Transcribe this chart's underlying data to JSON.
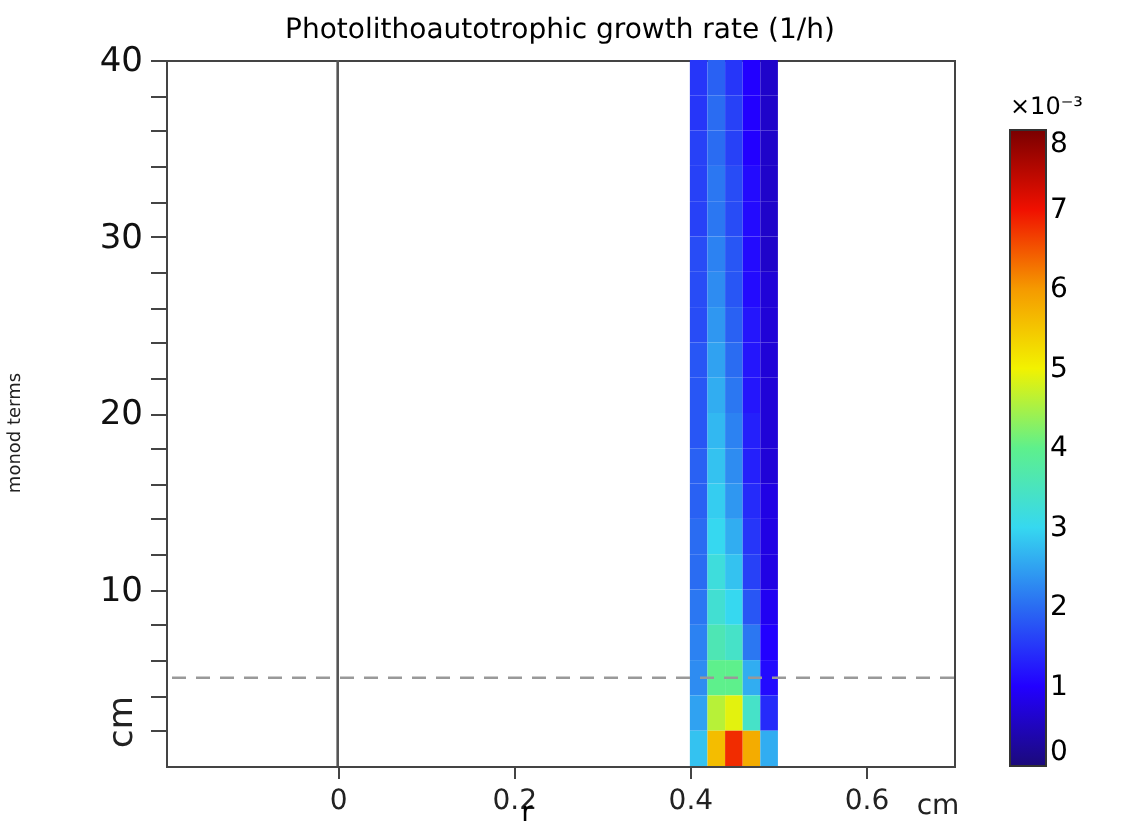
{
  "chart_data": {
    "type": "heatmap",
    "title": "Photolithoautotrophic growth rate (1/h)",
    "xlabel": "r",
    "clabel": "×10⁻³",
    "x": [
      0.41,
      0.43,
      0.45,
      0.47,
      0.49
    ],
    "cells": [
      [
        1.5,
        1.9,
        1.5,
        1.0,
        0.6
      ],
      [
        1.5,
        2.0,
        1.6,
        1.0,
        0.6
      ],
      [
        1.6,
        2.0,
        1.6,
        1.0,
        0.6
      ],
      [
        1.6,
        2.1,
        1.7,
        1.1,
        0.6
      ],
      [
        1.6,
        2.1,
        1.7,
        1.1,
        0.6
      ],
      [
        1.7,
        2.2,
        1.8,
        1.1,
        0.6
      ],
      [
        1.7,
        2.3,
        1.8,
        1.1,
        0.7
      ],
      [
        1.7,
        2.4,
        1.9,
        1.2,
        0.7
      ],
      [
        1.8,
        2.5,
        2.0,
        1.2,
        0.7
      ],
      [
        1.8,
        2.6,
        2.1,
        1.2,
        0.7
      ],
      [
        1.8,
        2.7,
        2.2,
        1.3,
        0.7
      ],
      [
        1.9,
        2.8,
        2.3,
        1.3,
        0.7
      ],
      [
        1.9,
        2.9,
        2.4,
        1.4,
        0.8
      ],
      [
        2.0,
        3.0,
        2.6,
        1.5,
        0.8
      ],
      [
        2.0,
        3.2,
        2.8,
        1.6,
        0.8
      ],
      [
        2.1,
        3.3,
        3.0,
        1.8,
        0.9
      ],
      [
        2.2,
        3.6,
        3.4,
        2.1,
        1.0
      ],
      [
        2.3,
        4.0,
        4.0,
        2.6,
        1.1
      ],
      [
        2.5,
        4.6,
        4.9,
        3.4,
        1.4
      ],
      [
        2.8,
        5.6,
        6.8,
        5.8,
        2.6
      ]
    ],
    "clim": [
      0,
      8
    ],
    "cticks": [
      0,
      1,
      2,
      3,
      4,
      5,
      6,
      7,
      8
    ],
    "xlim": [
      -0.195,
      0.7
    ],
    "xticks": [
      0,
      0.2,
      0.4,
      0.6
    ],
    "ylim": [
      0,
      40
    ],
    "yticks": [
      {
        "value": 2,
        "label": null
      },
      {
        "value": 4,
        "label": null
      },
      {
        "value": 6,
        "label": null
      },
      {
        "value": 8,
        "label": null
      },
      10,
      {
        "value": 12,
        "label": null
      },
      {
        "value": 14,
        "label": null
      },
      {
        "value": 16,
        "label": null
      },
      {
        "value": 18,
        "label": null
      },
      20,
      {
        "value": 22,
        "label": null
      },
      {
        "value": 24,
        "label": null
      },
      {
        "value": 26,
        "label": null
      },
      {
        "value": 28,
        "label": null
      },
      30,
      {
        "value": 32,
        "label": null
      },
      {
        "value": 34,
        "label": null
      },
      {
        "value": 36,
        "label": null
      },
      {
        "value": 38,
        "label": null
      },
      40
    ],
    "ref_lines": [
      {
        "axis": "x",
        "value": 0,
        "color": "#555555",
        "line_style": "solid"
      },
      {
        "axis": "y",
        "value": 5,
        "color": "#999999",
        "line_style": "dashed"
      }
    ],
    "annotations": [
      "cm",
      "cm",
      "monod terms"
    ],
    "grid": false
  }
}
